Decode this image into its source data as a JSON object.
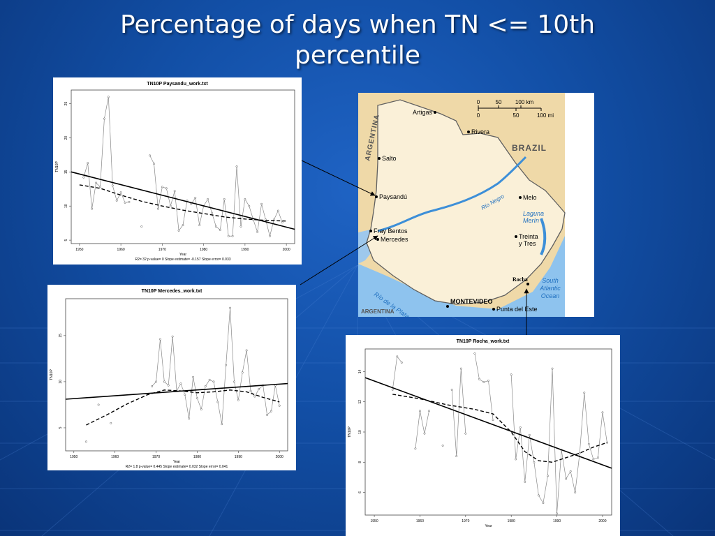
{
  "slide": {
    "title_line1": "Percentage of days when TN <= 10th",
    "title_line2": "percentile"
  },
  "map": {
    "labels": {
      "argentina_top": "ARGENTINA",
      "argentina_bottom": "ARGENTINA",
      "brazil": "BRAZIL",
      "rio_negro": "Río Negro",
      "laguna_merin": "Laguna Merín",
      "south_atlantic_ocean": "South Atlantic Ocean",
      "rio_de_la_plata": "Río de la Plata"
    },
    "cities": [
      "Artigas",
      "Rivera",
      "Salto",
      "Paysandú",
      "Melo",
      "Fray Bentos",
      "Mercedes",
      "Treinta y Tres",
      "Rocha",
      "MONTEVIDEO",
      "Punta del Este"
    ],
    "scale": {
      "km_ticks": [
        "0",
        "50",
        "100 km"
      ],
      "mi_ticks": [
        "0",
        "50",
        "100 mi"
      ]
    }
  },
  "chart_data": [
    {
      "type": "line",
      "title": "TN10P  Paysandu_work.txt",
      "xlabel": "Year",
      "ylabel": "TN10P",
      "footer": "R2= 32  p-value= 0  Slope estimate= -0.157  Slope error= 0.033",
      "xlim": [
        1948,
        2002
      ],
      "ylim": [
        4.5,
        27
      ],
      "xticks": [
        1950,
        1960,
        1970,
        1980,
        1990,
        2000
      ],
      "yticks": [
        5,
        10,
        15,
        20,
        25
      ],
      "series": [
        {
          "values": [
            [
              1951,
              14.2
            ],
            [
              1952,
              16.3
            ],
            [
              1953,
              9.6
            ],
            [
              1954,
              13.4
            ],
            [
              1955,
              12.8
            ],
            [
              1956,
              22.8
            ],
            [
              1957,
              26.0
            ],
            [
              1958,
              13.0
            ],
            [
              1959,
              10.8
            ],
            [
              1960,
              12.0
            ],
            [
              1961,
              10.5
            ],
            [
              1962,
              10.6
            ]
          ]
        },
        {
          "values": [
            [
              1965,
              7.0
            ]
          ]
        },
        {
          "values": [
            [
              1967,
              17.4
            ],
            [
              1968,
              16.2
            ],
            [
              1969,
              9.6
            ],
            [
              1970,
              12.8
            ],
            [
              1971,
              12.6
            ],
            [
              1972,
              10.0
            ],
            [
              1973,
              12.2
            ],
            [
              1974,
              6.4
            ],
            [
              1975,
              7.2
            ],
            [
              1976,
              10.8
            ],
            [
              1977,
              10.3
            ],
            [
              1978,
              11.2
            ],
            [
              1979,
              7.2
            ],
            [
              1980,
              10.0
            ],
            [
              1981,
              11.0
            ],
            [
              1982,
              9.0
            ],
            [
              1983,
              7.0
            ],
            [
              1984,
              6.5
            ],
            [
              1985,
              11.0
            ],
            [
              1986,
              5.6
            ],
            [
              1987,
              5.6
            ],
            [
              1988,
              15.8
            ],
            [
              1989,
              7.0
            ],
            [
              1990,
              11.0
            ],
            [
              1991,
              10.0
            ],
            [
              1992,
              8.0
            ],
            [
              1993,
              6.2
            ],
            [
              1994,
              10.3
            ],
            [
              1995,
              8.0
            ],
            [
              1996,
              5.6
            ],
            [
              1997,
              8.0
            ],
            [
              1998,
              9.3
            ],
            [
              1999,
              7.6
            ]
          ]
        }
      ],
      "trend": [
        [
          1948,
          15.0
        ],
        [
          2002,
          6.6
        ]
      ],
      "smooth": [
        [
          1950,
          13.1
        ],
        [
          1955,
          12.6
        ],
        [
          1960,
          11.6
        ],
        [
          1965,
          10.7
        ],
        [
          1970,
          10.0
        ],
        [
          1975,
          9.4
        ],
        [
          1980,
          8.9
        ],
        [
          1985,
          8.4
        ],
        [
          1990,
          8.1
        ],
        [
          1995,
          7.9
        ],
        [
          2000,
          7.8
        ]
      ]
    },
    {
      "type": "line",
      "title": "TN10P  Mercedes_work.txt",
      "xlabel": "Year",
      "ylabel": "TN10P",
      "footer": "R2= 1.8  p-value= 0.445  Slope estimate= 0.032  Slope error= 0.041",
      "xlim": [
        1948,
        2002
      ],
      "ylim": [
        2.5,
        19
      ],
      "xticks": [
        1950,
        1960,
        1970,
        1980,
        1990,
        2000
      ],
      "yticks": [
        5,
        10,
        15
      ],
      "series": [
        {
          "values": [
            [
              1953,
              3.5
            ]
          ]
        },
        {
          "values": [
            [
              1956,
              7.5
            ]
          ]
        },
        {
          "values": [
            [
              1959,
              5.5
            ]
          ]
        },
        {
          "values": [
            [
              1969,
              9.5
            ],
            [
              1970,
              10.0
            ],
            [
              1971,
              14.6
            ],
            [
              1972,
              10.0
            ],
            [
              1973,
              9.6
            ],
            [
              1974,
              14.9
            ],
            [
              1975,
              9.0
            ],
            [
              1976,
              9.8
            ],
            [
              1977,
              8.6
            ],
            [
              1978,
              6.0
            ],
            [
              1979,
              10.5
            ],
            [
              1980,
              8.2
            ],
            [
              1981,
              7.0
            ],
            [
              1982,
              9.5
            ],
            [
              1983,
              10.2
            ],
            [
              1984,
              10.0
            ],
            [
              1985,
              7.8
            ],
            [
              1986,
              5.4
            ],
            [
              1987,
              11.8
            ],
            [
              1988,
              18.0
            ],
            [
              1989,
              10.0
            ],
            [
              1990,
              8.0
            ],
            [
              1991,
              11.0
            ],
            [
              1992,
              13.4
            ],
            [
              1993,
              9.0
            ],
            [
              1994,
              8.4
            ],
            [
              1995,
              9.2
            ],
            [
              1996,
              9.6
            ],
            [
              1997,
              6.4
            ],
            [
              1998,
              6.8
            ],
            [
              1999,
              9.6
            ],
            [
              2000,
              7.4
            ]
          ]
        }
      ],
      "trend": [
        [
          1948,
          8.1
        ],
        [
          2002,
          9.8
        ]
      ],
      "smooth": [
        [
          1953,
          5.3
        ],
        [
          1958,
          6.4
        ],
        [
          1963,
          7.6
        ],
        [
          1968,
          8.6
        ],
        [
          1972,
          9.1
        ],
        [
          1976,
          9.0
        ],
        [
          1980,
          8.8
        ],
        [
          1984,
          8.9
        ],
        [
          1988,
          9.1
        ],
        [
          1992,
          8.9
        ],
        [
          1996,
          8.3
        ],
        [
          2000,
          7.8
        ]
      ]
    },
    {
      "type": "line",
      "title": "TN10P  Rocha_work.txt",
      "xlabel": "Year",
      "ylabel": "TN10P",
      "footer": "",
      "xlim": [
        1948,
        2002
      ],
      "ylim": [
        4.5,
        15.5
      ],
      "xticks": [
        1950,
        1960,
        1970,
        1980,
        1990,
        2000
      ],
      "yticks": [
        6,
        8,
        10,
        12,
        14
      ],
      "series": [
        {
          "values": [
            [
              1954,
              12.8
            ],
            [
              1955,
              15.0
            ],
            [
              1956,
              14.6
            ]
          ]
        },
        {
          "values": [
            [
              1959,
              8.9
            ],
            [
              1960,
              11.4
            ],
            [
              1961,
              9.9
            ],
            [
              1962,
              11.4
            ]
          ]
        },
        {
          "values": [
            [
              1965,
              9.1
            ]
          ]
        },
        {
          "values": [
            [
              1967,
              12.8
            ],
            [
              1968,
              8.4
            ],
            [
              1969,
              14.2
            ],
            [
              1970,
              9.9
            ]
          ]
        },
        {
          "values": [
            [
              1972,
              15.2
            ],
            [
              1973,
              13.5
            ],
            [
              1974,
              13.3
            ],
            [
              1975,
              13.4
            ],
            [
              1976,
              10.8
            ]
          ]
        },
        {
          "values": [
            [
              1980,
              13.8
            ],
            [
              1981,
              8.2
            ],
            [
              1982,
              10.3
            ],
            [
              1983,
              6.7
            ],
            [
              1984,
              9.8
            ],
            [
              1985,
              8.0
            ],
            [
              1986,
              5.8
            ],
            [
              1987,
              5.3
            ],
            [
              1988,
              7.1
            ],
            [
              1989,
              14.2
            ],
            [
              1990,
              4.6
            ],
            [
              1991,
              8.8
            ],
            [
              1992,
              6.9
            ],
            [
              1993,
              7.4
            ],
            [
              1994,
              6.0
            ],
            [
              1995,
              8.6
            ],
            [
              1996,
              12.6
            ],
            [
              1997,
              9.2
            ],
            [
              1998,
              8.2
            ],
            [
              1999,
              8.3
            ],
            [
              2000,
              11.3
            ],
            [
              2001,
              9.3
            ]
          ]
        }
      ],
      "trend": [
        [
          1948,
          13.6
        ],
        [
          2002,
          7.6
        ]
      ],
      "smooth": [
        [
          1954,
          12.5
        ],
        [
          1960,
          12.2
        ],
        [
          1966,
          11.8
        ],
        [
          1972,
          11.5
        ],
        [
          1976,
          11.2
        ],
        [
          1980,
          10.0
        ],
        [
          1983,
          8.7
        ],
        [
          1986,
          8.1
        ],
        [
          1989,
          8.0
        ],
        [
          1992,
          8.3
        ],
        [
          1995,
          8.6
        ],
        [
          1998,
          9.0
        ],
        [
          2001,
          9.3
        ]
      ]
    }
  ]
}
